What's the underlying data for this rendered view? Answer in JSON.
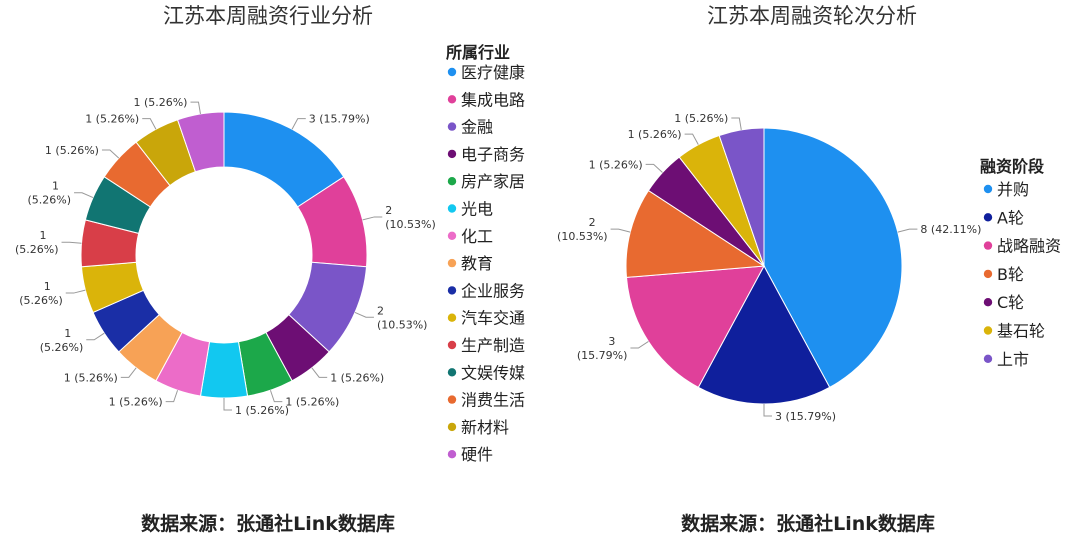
{
  "chart_data": [
    {
      "type": "pie",
      "variant": "donut",
      "title": "江苏本周融资行业分析",
      "legend_title": "所属行业",
      "legend_position": "right",
      "source": "数据来源：张通社Link数据库",
      "slices": [
        {
          "name": "医疗健康",
          "value": 3,
          "label": "3 (15.79%)",
          "color": "#1e90f0"
        },
        {
          "name": "集成电路",
          "value": 2,
          "label": "2\n(10.53%)",
          "color": "#e0409a"
        },
        {
          "name": "金融",
          "value": 2,
          "label": "2\n(10.53%)",
          "color": "#7a55c8"
        },
        {
          "name": "电子商务",
          "value": 1,
          "label": "1 (5.26%)",
          "color": "#6d0e74"
        },
        {
          "name": "房产家居",
          "value": 1,
          "label": "1 (5.26%)",
          "color": "#1ca84a"
        },
        {
          "name": "光电",
          "value": 1,
          "label": "1 (5.26%)",
          "color": "#12c8f0"
        },
        {
          "name": "化工",
          "value": 1,
          "label": "1 (5.26%)",
          "color": "#ec6cc8"
        },
        {
          "name": "教育",
          "value": 1,
          "label": "1 (5.26%)",
          "color": "#f7a256"
        },
        {
          "name": "企业服务",
          "value": 1,
          "label": "1\n(5.26%)",
          "color": "#1a2ea6"
        },
        {
          "name": "汽车交通",
          "value": 1,
          "label": "1\n(5.26%)",
          "color": "#dab40a"
        },
        {
          "name": "生产制造",
          "value": 1,
          "label": "1\n(5.26%)",
          "color": "#d83e48"
        },
        {
          "name": "文娱传媒",
          "value": 1,
          "label": "1\n(5.26%)",
          "color": "#117572"
        },
        {
          "name": "消费生活",
          "value": 1,
          "label": "1 (5.26%)",
          "color": "#e86a30"
        },
        {
          "name": "新材料",
          "value": 1,
          "label": "1 (5.26%)",
          "color": "#c9a60a"
        },
        {
          "name": "硬件",
          "value": 1,
          "label": "1 (5.26%)",
          "color": "#c05ed0"
        }
      ]
    },
    {
      "type": "pie",
      "title": "江苏本周融资轮次分析",
      "legend_title": "融资阶段",
      "legend_position": "right",
      "source": "数据来源：张通社Link数据库",
      "slices": [
        {
          "name": "并购",
          "value": 8,
          "label": "8 (42.11%)",
          "color": "#1e90f0"
        },
        {
          "name": "A轮",
          "value": 3,
          "label": "3 (15.79%)",
          "color": "#0f1f9c"
        },
        {
          "name": "战略融资",
          "value": 3,
          "label": "3\n(15.79%)",
          "color": "#e0409a"
        },
        {
          "name": "B轮",
          "value": 2,
          "label": "2\n(10.53%)",
          "color": "#e86a30"
        },
        {
          "name": "C轮",
          "value": 1,
          "label": "1 (5.26%)",
          "color": "#6d0e74"
        },
        {
          "name": "基石轮",
          "value": 1,
          "label": "1 (5.26%)",
          "color": "#dab40a"
        },
        {
          "name": "上市",
          "value": 1,
          "label": "1 (5.26%)",
          "color": "#7a55c8"
        }
      ]
    }
  ]
}
